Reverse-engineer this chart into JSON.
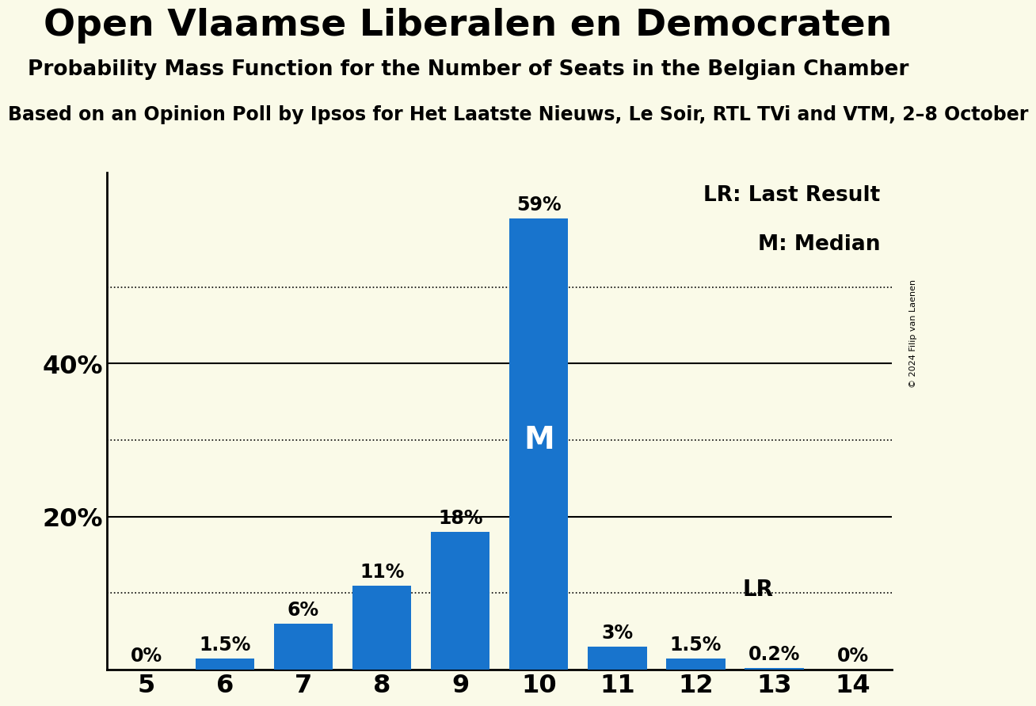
{
  "title": "Open Vlaamse Liberalen en Democraten",
  "subtitle": "Probability Mass Function for the Number of Seats in the Belgian Chamber",
  "source_line": "Based on an Opinion Poll by Ipsos for Het Laatste Nieuws, Le Soir, RTL TVi and VTM, 2–8 October",
  "copyright": "© 2024 Filip van Laenen",
  "seats": [
    5,
    6,
    7,
    8,
    9,
    10,
    11,
    12,
    13,
    14
  ],
  "probabilities": [
    0.0,
    1.5,
    6.0,
    11.0,
    18.0,
    59.0,
    3.0,
    1.5,
    0.2,
    0.0
  ],
  "bar_color": "#1874CD",
  "background_color": "#FAFAE8",
  "median_seat": 10,
  "last_result_seat": 12,
  "ylim": [
    0,
    65
  ],
  "title_fontsize": 34,
  "subtitle_fontsize": 19,
  "source_fontsize": 17,
  "bar_label_fontsize": 17,
  "axis_tick_fontsize": 23,
  "legend_fontsize": 19,
  "median_label_fontsize": 28,
  "lr_label_fontsize": 20
}
